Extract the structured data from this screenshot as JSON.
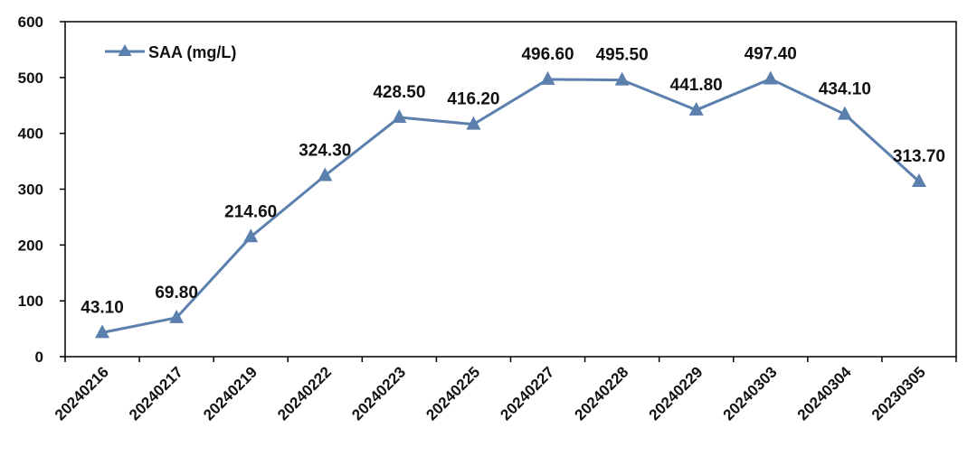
{
  "chart_data": {
    "type": "line",
    "title": "",
    "xlabel": "",
    "ylabel": "",
    "categories": [
      "20240216",
      "20240217",
      "20240219",
      "20240222",
      "20240223",
      "20240225",
      "20240227",
      "20240228",
      "20240229",
      "20240303",
      "20240304",
      "20230305"
    ],
    "series": [
      {
        "name": "SAA (mg/L)",
        "values": [
          43.1,
          69.8,
          214.6,
          324.3,
          428.5,
          416.2,
          496.6,
          495.5,
          441.8,
          497.4,
          434.1,
          313.7
        ],
        "value_labels": [
          "43.10",
          "69.80",
          "214.60",
          "324.30",
          "428.50",
          "416.20",
          "496.60",
          "495.50",
          "441.80",
          "497.40",
          "434.10",
          "313.70"
        ],
        "marker": "triangle",
        "color": "#5B80AE"
      }
    ],
    "ylim": [
      0,
      600
    ],
    "yticks": [
      0,
      100,
      200,
      300,
      400,
      500,
      600
    ],
    "ytick_labels": [
      "0",
      "100",
      "200",
      "300",
      "400",
      "500",
      "600"
    ],
    "grid": false,
    "legend": {
      "position": "top-left",
      "label": "SAA (mg/L)"
    }
  }
}
